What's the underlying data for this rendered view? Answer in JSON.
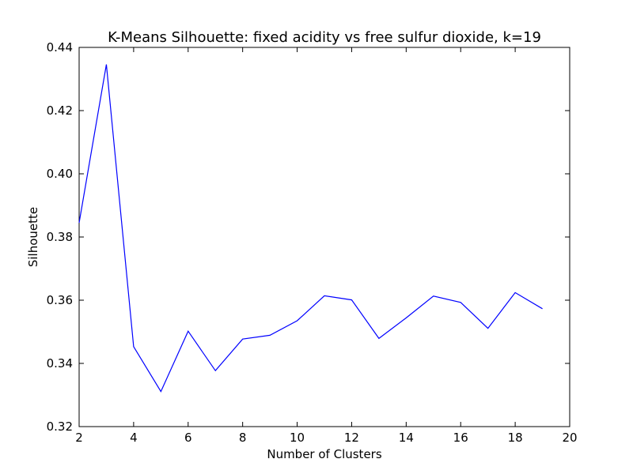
{
  "chart_data": {
    "type": "line",
    "title": "K-Means Silhouette: fixed acidity vs free sulfur dioxide, k=19",
    "xlabel": "Number of Clusters",
    "ylabel": "Silhouette",
    "xlim": [
      2,
      20
    ],
    "ylim": [
      0.32,
      0.44
    ],
    "x_ticks": [
      "2",
      "4",
      "6",
      "8",
      "10",
      "12",
      "14",
      "16",
      "18",
      "20"
    ],
    "y_ticks": [
      "0.32",
      "0.34",
      "0.36",
      "0.38",
      "0.40",
      "0.42",
      "0.44"
    ],
    "grid": false,
    "line_color": "#0000ff",
    "series": [
      {
        "x": [
          2,
          3,
          4,
          5,
          6,
          7,
          8,
          9,
          10,
          11,
          12,
          13,
          14,
          15,
          16,
          17,
          18,
          19
        ],
        "values": [
          0.3845,
          0.4346,
          0.3453,
          0.3311,
          0.3502,
          0.3377,
          0.3477,
          0.3489,
          0.3535,
          0.3614,
          0.3601,
          0.3479,
          0.3544,
          0.3613,
          0.3593,
          0.3511,
          0.3624,
          0.3573
        ]
      }
    ]
  }
}
